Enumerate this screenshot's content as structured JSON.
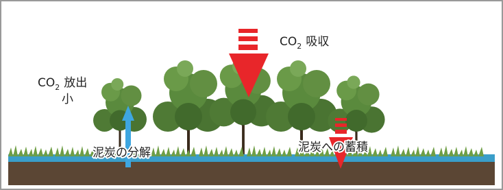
{
  "absorption": {
    "formula": "CO",
    "subscript": "2",
    "label": "吸収"
  },
  "emission": {
    "formula": "CO",
    "subscript": "2",
    "label": "放出",
    "amount": "小"
  },
  "decomposition": "泥炭の分解",
  "accumulation": "泥炭への蓄積"
}
